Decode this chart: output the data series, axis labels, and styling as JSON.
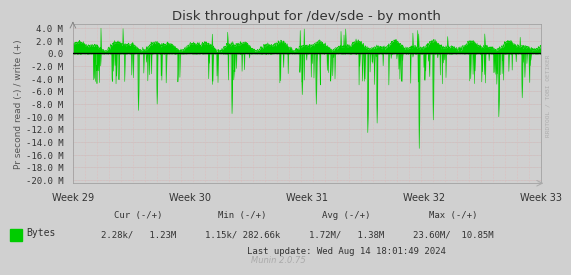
{
  "title": "Disk throughput for /dev/sde - by month",
  "ylabel": "Pr second read (-) / write (+)",
  "xlabel_ticks": [
    "Week 29",
    "Week 30",
    "Week 31",
    "Week 32",
    "Week 33"
  ],
  "ylim": [
    -20500000,
    4700000
  ],
  "yticks": [
    4000000,
    2000000,
    0.0,
    -2000000,
    -4000000,
    -6000000,
    -8000000,
    -10000000,
    -12000000,
    -14000000,
    -16000000,
    -18000000,
    -20000000
  ],
  "ytick_labels": [
    "4.0 M",
    "2.0 M",
    "0.0",
    "-2.0 M",
    "-4.0 M",
    "-6.0 M",
    "-8.0 M",
    "-10.0 M",
    "-12.0 M",
    "-14.0 M",
    "-16.0 M",
    "-18.0 M",
    "-20.0 M"
  ],
  "bg_color": "#d0d0d0",
  "plot_bg_color": "#d0d0d0",
  "grid_color_white": "#c8c8c8",
  "grid_color_pink": "#e8b0b0",
  "line_color": "#00cc00",
  "zero_line_color": "#000000",
  "title_color": "#333333",
  "tick_label_color": "#333333",
  "axis_label_color": "#555555",
  "watermark": "RRDTOOL / TOBI OETIKER",
  "legend_label": "Bytes",
  "legend_color": "#00cc00",
  "footer_cur": "Cur (-/+)",
  "footer_min": "Min (-/+)",
  "footer_avg": "Avg (-/+)",
  "footer_max": "Max (-/+)",
  "footer_cur_val": "2.28k/   1.23M",
  "footer_min_val": "1.15k/ 282.66k",
  "footer_avg_val": "1.72M/   1.38M",
  "footer_max_val": "23.60M/  10.85M",
  "footer_lastupdate": "Last update: Wed Aug 14 18:01:49 2024",
  "munin_version": "Munin 2.0.75",
  "n_points": 1400,
  "seed": 42
}
